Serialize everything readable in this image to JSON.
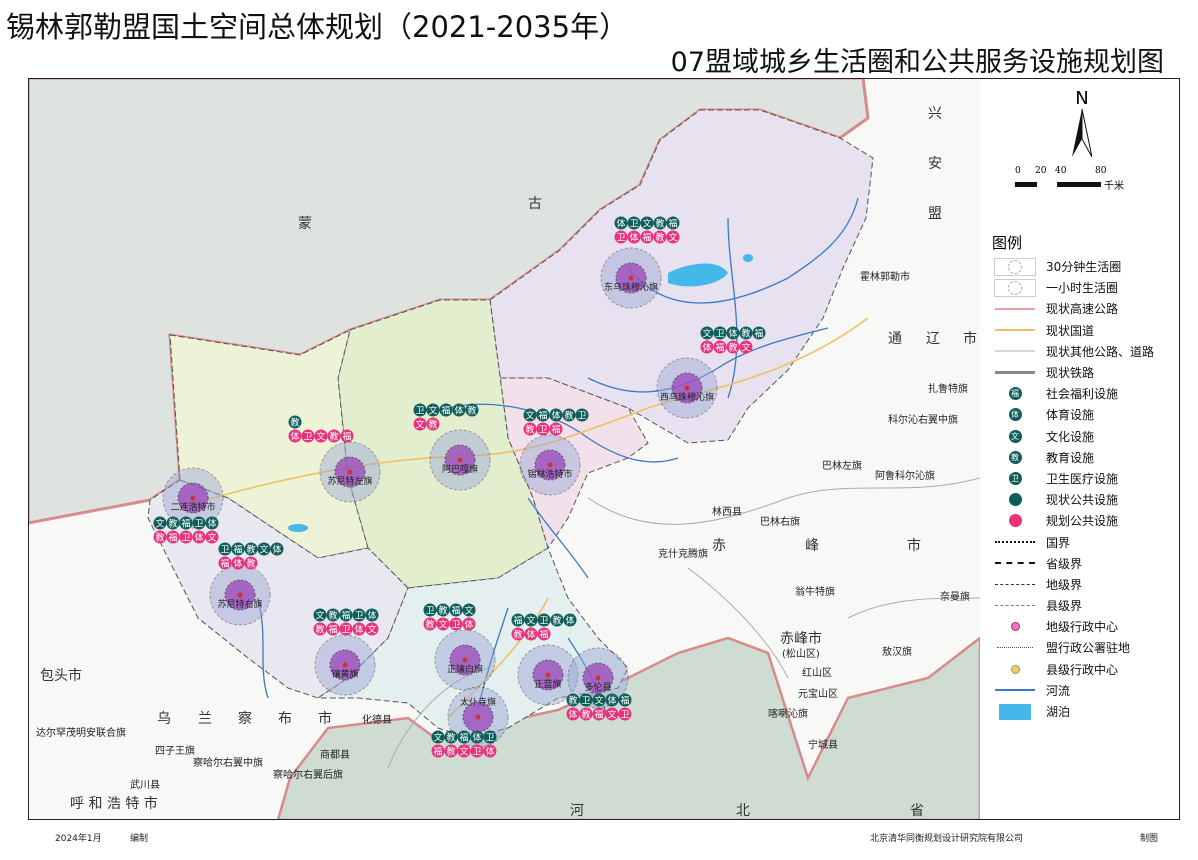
{
  "header": {
    "title": "锡林郭勒盟国土空间总体规划（2021-2035年）",
    "subtitle": "07盟域城乡生活圈和公共服务设施规划图"
  },
  "compass": {
    "label": "N",
    "scale_ticks": [
      "0",
      "20",
      "40",
      "80"
    ],
    "scale_unit": "千米"
  },
  "legend": {
    "title": "图例",
    "items": [
      {
        "label": "30分钟生活圈",
        "symbol": "circle-30"
      },
      {
        "label": "一小时生活圈",
        "symbol": "circle-60"
      },
      {
        "label": "现状高速公路",
        "symbol": "line",
        "color": "#e8a0a0"
      },
      {
        "label": "现状国道",
        "symbol": "line",
        "color": "#f0c060"
      },
      {
        "label": "现状其他公路、道路",
        "symbol": "line",
        "color": "#d8d8d8"
      },
      {
        "label": "现状铁路",
        "symbol": "rail",
        "color": "#888888"
      },
      {
        "label": "社会福利设施",
        "symbol": "dot",
        "char": "福",
        "color": "#0f5e5a"
      },
      {
        "label": "体育设施",
        "symbol": "dot",
        "char": "体",
        "color": "#0f5e5a"
      },
      {
        "label": "文化设施",
        "symbol": "dot",
        "char": "文",
        "color": "#0f5e5a"
      },
      {
        "label": "教育设施",
        "symbol": "dot",
        "char": "教",
        "color": "#0f5e5a"
      },
      {
        "label": "卫生医疗设施",
        "symbol": "dot",
        "char": "卫",
        "color": "#0f5e5a"
      },
      {
        "label": "现状公共设施",
        "symbol": "dot",
        "char": "",
        "color": "#0f5e5a"
      },
      {
        "label": "规划公共设施",
        "symbol": "dot",
        "char": "",
        "color": "#e8327c"
      },
      {
        "label": "国界",
        "symbol": "boundary-national"
      },
      {
        "label": "省级界",
        "symbol": "boundary-province"
      },
      {
        "label": "地级界",
        "symbol": "boundary-prefecture"
      },
      {
        "label": "县级界",
        "symbol": "boundary-county"
      },
      {
        "label": "地级行政中心",
        "symbol": "center-prefecture"
      },
      {
        "label": "盟行政公署驻地",
        "symbol": "center-league"
      },
      {
        "label": "县级行政中心",
        "symbol": "center-county"
      },
      {
        "label": "河流",
        "symbol": "line",
        "color": "#3a78c8"
      },
      {
        "label": "湖泊",
        "symbol": "fill",
        "color": "#45b8ea"
      }
    ]
  },
  "colors": {
    "existing": "#0f5e5a",
    "planned": "#e8327c",
    "lake": "#45b8ea",
    "river": "#3a78c8",
    "border": "#d98a8a"
  },
  "life_circles": [
    {
      "name": "东乌珠穆沁旗",
      "existing": "体卫文教福",
      "planned": "卫体福教文"
    },
    {
      "name": "西乌珠穆沁旗",
      "existing": "文卫体教福",
      "planned": "体福教文"
    },
    {
      "name": "锡林浩特市",
      "existing": "文福体教卫",
      "planned": "教卫福"
    },
    {
      "name": "阿巴嘎旗",
      "existing": "卫文福体教",
      "planned": "文教"
    },
    {
      "name": "苏尼特左旗",
      "existing": "教",
      "planned": "体卫文教福"
    },
    {
      "name": "二连浩特市",
      "existing": "文教福卫体",
      "planned": "教福卫体文"
    },
    {
      "name": "苏尼特右旗",
      "existing": "卫福教文体",
      "planned": "福体教"
    },
    {
      "name": "镶黄旗",
      "existing": "文教福卫体",
      "planned": "教福卫体文"
    },
    {
      "name": "正镶白旗",
      "existing": "卫教福文",
      "planned": "教文卫体"
    },
    {
      "name": "太仆寺旗",
      "existing": "文教福体卫",
      "planned": "福教文卫体"
    },
    {
      "name": "正蓝旗",
      "existing": "福文卫教体",
      "planned": "教体福"
    },
    {
      "name": "多伦县",
      "existing": "教卫文体福",
      "planned": "体教福文卫"
    }
  ],
  "places": [
    "蒙",
    "古",
    "兴",
    "安",
    "盟",
    "通",
    "辽",
    "市",
    "赤",
    "峰",
    "市",
    "河",
    "北",
    "省",
    "包头市",
    "乌",
    "兰",
    "察",
    "布",
    "市",
    "呼 和 浩 特 市",
    "达尔罕茂明安联合旗",
    "四子王旗",
    "察哈尔右翼中旗",
    "察哈尔右翼后旗",
    "商都县",
    "化德县",
    "武川县",
    "科尔沁右翼中旗",
    "扎鲁特旗",
    "阿鲁科尔沁旗",
    "巴林左旗",
    "巴林右旗",
    "林西县",
    "克什克腾旗",
    "翁牛特旗",
    "赤峰市",
    "(松山区)",
    "红山区",
    "元宝山区",
    "喀喇沁旗",
    "宁城县",
    "敖汉旗",
    "奈曼旗",
    "霍林郭勒市"
  ],
  "footer": {
    "date": "2024年1月",
    "compile": "编制",
    "company": "北京清华同衡规划设计研究院有限公司",
    "draw": "制图"
  }
}
